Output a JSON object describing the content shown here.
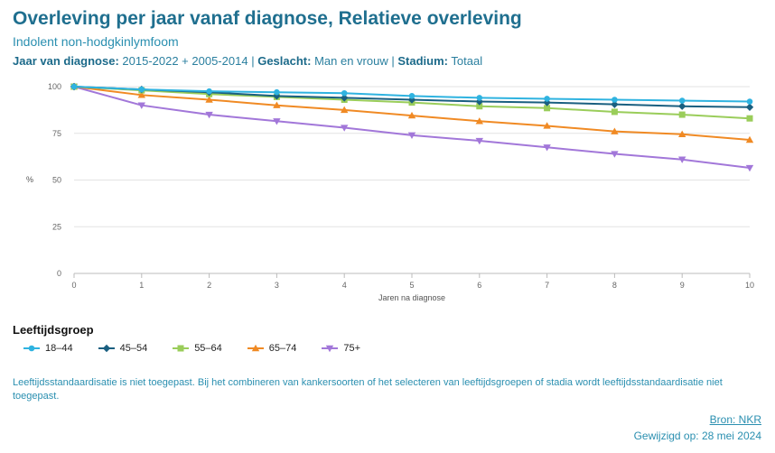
{
  "header": {
    "title": "Overleving per jaar vanaf diagnose, Relatieve overleving",
    "subtitle": "Indolent non-hodgkinlymfoom",
    "filters": {
      "year_label": "Jaar van diagnose:",
      "year_value": "2015-2022 + 2005-2014",
      "sep1": "|",
      "sex_label": "Geslacht:",
      "sex_value": "Man en vrouw",
      "sep2": "|",
      "stage_label": "Stadium:",
      "stage_value": "Totaal"
    }
  },
  "chart_data": {
    "type": "line",
    "title": "Overleving per jaar vanaf diagnose, Relatieve overleving",
    "xlabel": "Jaren na diagnose",
    "ylabel": "%",
    "x": [
      0,
      1,
      2,
      3,
      4,
      5,
      6,
      7,
      8,
      9,
      10
    ],
    "ylim": [
      0,
      100
    ],
    "yticks": [
      0,
      25,
      50,
      75,
      100
    ],
    "grid": true,
    "legend_title": "Leeftijdsgroep",
    "legend_position": "bottom-left",
    "series": [
      {
        "name": "18–44",
        "color": "#2fb3e0",
        "marker": "circle",
        "values": [
          100,
          98.5,
          97.5,
          97,
          96.5,
          95,
          94,
          93.5,
          93,
          92.5,
          92
        ]
      },
      {
        "name": "45–54",
        "color": "#1a5f80",
        "marker": "diamond",
        "values": [
          100,
          98.5,
          97,
          95,
          94,
          93,
          92,
          91.5,
          90.5,
          89.5,
          89
        ]
      },
      {
        "name": "55–64",
        "color": "#9acd5a",
        "marker": "square",
        "values": [
          100,
          98,
          96,
          94.5,
          93,
          91.5,
          89.5,
          88.5,
          86.5,
          85,
          83
        ]
      },
      {
        "name": "65–74",
        "color": "#f08a24",
        "marker": "triangle",
        "values": [
          100,
          95.5,
          93,
          90,
          87.5,
          84.5,
          81.5,
          79,
          76,
          74.5,
          71.5
        ]
      },
      {
        "name": "75+",
        "color": "#a277d9",
        "marker": "triangle-down",
        "values": [
          100,
          90,
          85,
          81.5,
          78,
          74,
          71,
          67.5,
          64,
          61,
          56.5
        ]
      }
    ]
  },
  "footer": {
    "note": "Leeftijdsstandaardisatie is niet toegepast. Bij het combineren van kankersoorten of het selecteren van leeftijdsgroepen of stadia wordt leeftijdsstandaardisatie niet toegepast.",
    "source": "Bron: NKR",
    "modified": "Gewijzigd op: 28 mei 2024"
  }
}
